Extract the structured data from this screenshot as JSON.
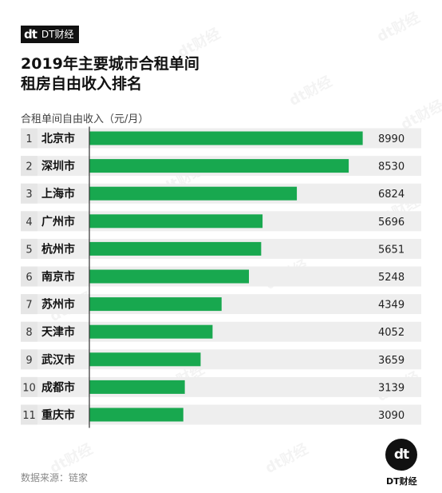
{
  "brand": {
    "mark": "dt",
    "name": "DT财经"
  },
  "title_lines": [
    "2019年主要城市合租单间",
    "租房自由收入排名"
  ],
  "source": "数据来源：链家",
  "chart_data": {
    "type": "bar",
    "orientation": "horizontal",
    "title": "2019年主要城市合租单间租房自由收入排名",
    "axis_note": "合租单间自由收入（元/月）",
    "ranks": [
      "1",
      "2",
      "3",
      "4",
      "5",
      "6",
      "7",
      "8",
      "9",
      "10",
      "11"
    ],
    "categories": [
      "北京市",
      "深圳市",
      "上海市",
      "广州市",
      "杭州市",
      "南京市",
      "苏州市",
      "天津市",
      "武汉市",
      "成都市",
      "重庆市"
    ],
    "values": [
      8990,
      8530,
      6824,
      5696,
      5651,
      5248,
      4349,
      4052,
      3659,
      3139,
      3090
    ],
    "xlim": [
      0,
      9000
    ],
    "colors": {
      "bar": "#18a84f",
      "track": "#eeeeee",
      "rank_bg": "#e6e6e6",
      "axis": "#333333"
    },
    "legend": "none",
    "grid": false
  }
}
